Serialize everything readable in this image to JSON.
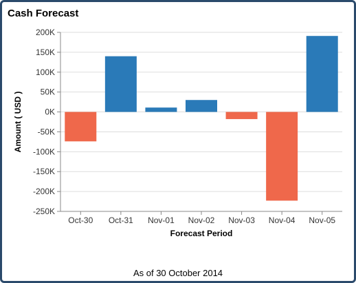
{
  "panel": {
    "title": "Cash Forecast",
    "footer": "As of 30 October 2014"
  },
  "chart_data": {
    "type": "bar",
    "title": "",
    "xlabel": "Forecast Period",
    "ylabel": "Amount ( USD )",
    "categories": [
      "Oct-30",
      "Oct-31",
      "Nov-01",
      "Nov-02",
      "Nov-03",
      "Nov-04",
      "Nov-05"
    ],
    "values": [
      -74000,
      140000,
      11000,
      30000,
      -18000,
      -223000,
      191000
    ],
    "ylim": [
      -250000,
      200000
    ],
    "yticks": [
      200000,
      150000,
      100000,
      50000,
      0,
      -50000,
      -100000,
      -150000,
      -200000,
      -250000
    ],
    "ytick_labels": [
      "200K",
      "150K",
      "100K",
      "50K",
      "0K",
      "-50K",
      "-100K",
      "-150K",
      "-200K",
      "-250K"
    ],
    "grid": true,
    "colors": {
      "positive": "#2a7ab8",
      "negative": "#ef684b",
      "grid": "#dddddd",
      "axis": "#888888"
    }
  }
}
